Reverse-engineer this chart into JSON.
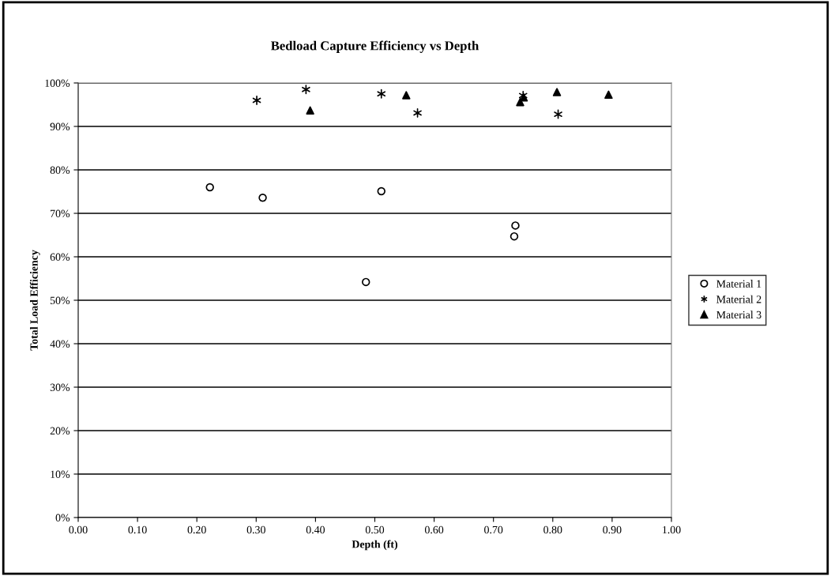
{
  "chart_data": {
    "type": "scatter",
    "title": "Bedload Capture Efficiency vs Depth",
    "xlabel": "Depth (ft)",
    "ylabel": "Total Load Efficiency",
    "xlim": [
      0,
      1
    ],
    "xticks": [
      {
        "value": 0,
        "label": "0.00"
      },
      {
        "value": 0.1,
        "label": "0.10"
      },
      {
        "value": 0.2,
        "label": "0.20"
      },
      {
        "value": 0.3,
        "label": "0.30"
      },
      {
        "value": 0.4,
        "label": "0.40"
      },
      {
        "value": 0.5,
        "label": "0.50"
      },
      {
        "value": 0.6,
        "label": "0.60"
      },
      {
        "value": 0.7,
        "label": "0.70"
      },
      {
        "value": 0.8,
        "label": "0.80"
      },
      {
        "value": 0.9,
        "label": "0.90"
      },
      {
        "value": 1,
        "label": "1.00"
      }
    ],
    "ylim": [
      0,
      100
    ],
    "yticks": [
      {
        "value": 0,
        "label": "0%"
      },
      {
        "value": 10,
        "label": "10%"
      },
      {
        "value": 20,
        "label": "20%"
      },
      {
        "value": 30,
        "label": "30%"
      },
      {
        "value": 40,
        "label": "40%"
      },
      {
        "value": 50,
        "label": "50%"
      },
      {
        "value": 60,
        "label": "60%"
      },
      {
        "value": 70,
        "label": "70%"
      },
      {
        "value": 80,
        "label": "80%"
      },
      {
        "value": 90,
        "label": "90%"
      },
      {
        "value": 100,
        "label": "100%"
      }
    ],
    "grid": "y",
    "legend": "right",
    "series": [
      {
        "name": "Material 1",
        "color": "#000000",
        "marker": "circle",
        "x": [
          0.222,
          0.311,
          0.511,
          0.737,
          0.735,
          0.485
        ],
        "values": [
          76.0,
          73.6,
          75.1,
          67.2,
          64.7,
          54.2
        ]
      },
      {
        "name": "Material 2",
        "color": "#000000",
        "marker": "cross",
        "x": [
          0.301,
          0.384,
          0.511,
          0.572,
          0.75,
          0.809
        ],
        "values": [
          96.0,
          98.5,
          97.5,
          93.1,
          97.1,
          92.8
        ]
      },
      {
        "name": "Material 3",
        "color": "#000000",
        "marker": "triangle",
        "x": [
          0.391,
          0.553,
          0.745,
          0.751,
          0.807,
          0.894
        ],
        "values": [
          93.7,
          97.2,
          95.6,
          96.7,
          97.9,
          97.3
        ]
      }
    ]
  }
}
